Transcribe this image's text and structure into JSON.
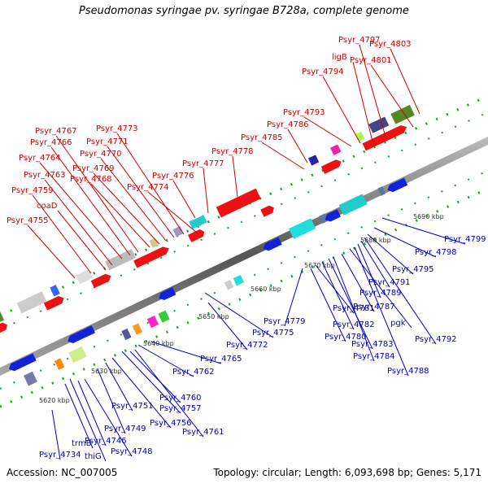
{
  "title": "Pseudomonas syringae pv. syringae B728a, complete genome",
  "accession": "Accession: NC_007005",
  "summary": "Topology: circular; Length: 6,093,698 bp; Genes: 5,171",
  "colors": {
    "forward_label": "#cc0000",
    "reverse_label": "#0000bb",
    "forward_arrow": "#ee1111",
    "reverse_arrow": "#1122dd",
    "backbone": "#777777",
    "dots": "#229922"
  },
  "ticks": [
    "5620 kbp",
    "5630 kbp",
    "5640 kbp",
    "5650 kbp",
    "5660 kbp",
    "5670 kbp",
    "5680 kbp",
    "5690 kbp"
  ],
  "forward_genes": [
    "Psyr_4755",
    "Psyr_4759",
    "coaD",
    "Psyr_4763",
    "Psyr_4764",
    "Psyr_4766",
    "Psyr_4767",
    "Psyr_4768",
    "Psyr_4769",
    "Psyr_4770",
    "Psyr_4771",
    "Psyr_4773",
    "Psyr_4774",
    "Psyr_4776",
    "Psyr_4777",
    "Psyr_4778",
    "Psyr_4785",
    "Psyr_4786",
    "Psyr_4793",
    "Psyr_4794",
    "ligB",
    "Psyr_4797",
    "Psyr_4801",
    "Psyr_4803"
  ],
  "reverse_genes": [
    "Psyr_4734",
    "thiG",
    "trmB",
    "Psyr_4748",
    "Psyr_4746",
    "Psyr_4749",
    "Psyr_4751",
    "Psyr_4756",
    "Psyr_4757",
    "Psyr_4760",
    "Psyr_4761",
    "Psyr_4762",
    "Psyr_4765",
    "Psyr_4772",
    "Psyr_4775",
    "Psyr_4779",
    "Psyr_4780",
    "Psyr_4781",
    "Psyr_4782",
    "Psyr_4783",
    "Psyr_4784",
    "Psyr_4787",
    "pgk",
    "Psyr_4788",
    "Psyr_4789",
    "Psyr_4791",
    "Psyr_4792",
    "Psyr_4795",
    "Psyr_4798",
    "Psyr_4799"
  ]
}
